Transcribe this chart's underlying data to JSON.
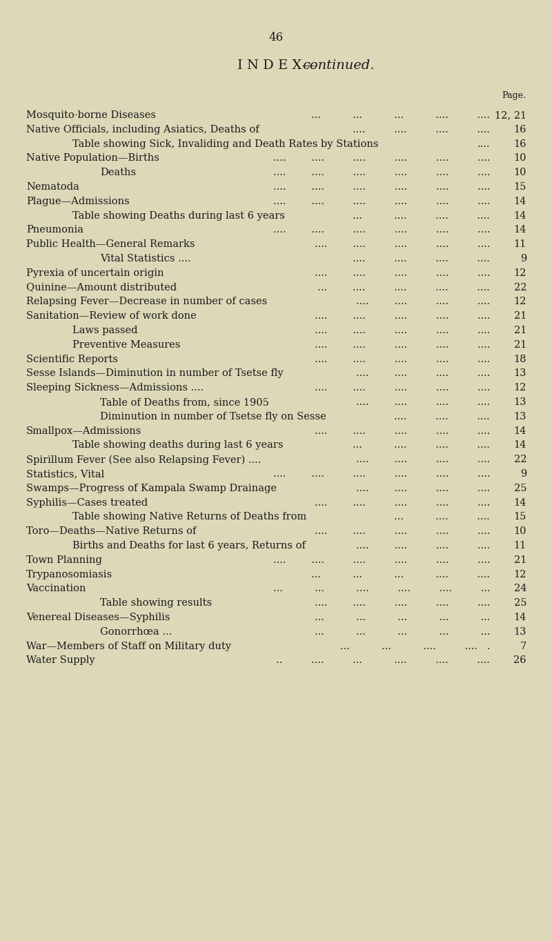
{
  "page_number": "46",
  "title": "I N D E X—",
  "title2": "continued.",
  "page_label": "Page.",
  "background_color": "#ddd8b8",
  "text_color": "#1a1a1a",
  "entries": [
    {
      "indent": 0,
      "text": "Mosquito-borne Diseases",
      "dots": "...          ...          ...          ....         ....",
      "page": "12, 21"
    },
    {
      "indent": 0,
      "text": "Native Officials, including Asiatics, Deaths of",
      "dots": "....         ....         ....         ....",
      "page": "16"
    },
    {
      "indent": 1,
      "text": "Table showing Sick, Invaliding and Death Rates by Stations",
      "dots": "....",
      "page": "16"
    },
    {
      "indent": 0,
      "text": "Native Population—Births",
      "dots": "....        ....         ....         ....         ....         ....",
      "page": "10"
    },
    {
      "indent": 2,
      "text": "Deaths",
      "dots": "....        ....         ....         ....         ....         ....",
      "page": "10"
    },
    {
      "indent": 0,
      "text": "Nematoda",
      "dots": "....        ....         ....         ....         ....         ....",
      "page": "15"
    },
    {
      "indent": 0,
      "text": "Plague—Admissions",
      "dots": "....        ....         ....         ....         ....         ....",
      "page": "14"
    },
    {
      "indent": 1,
      "text": "Table showing Deaths during last 6 years",
      "dots": "...          ....         ....         ....",
      "page": "14"
    },
    {
      "indent": 0,
      "text": "Pneumonia",
      "dots": "....        ....         ....         ....         ....         ....",
      "page": "14"
    },
    {
      "indent": 0,
      "text": "Public Health—General Remarks",
      "dots": "....        ....         ....         ....         ....",
      "page": "11"
    },
    {
      "indent": 2,
      "text": "Vital Statistics ....",
      "dots": "....         ....         ....         ....",
      "page": "9"
    },
    {
      "indent": 0,
      "text": "Pyrexia of uncertain origin",
      "dots": "....        ....         ....         ....         ....",
      "page": "12"
    },
    {
      "indent": 0,
      "text": "Quinine—Amount distributed",
      "dots": "...        ....         ....         ....         ....",
      "page": "22"
    },
    {
      "indent": 0,
      "text": "Relapsing Fever—Decrease in number of cases",
      "dots": "....        ....         ....         ....",
      "page": "12"
    },
    {
      "indent": 0,
      "text": "Sanitation—Review of work done",
      "dots": "....        ....         ....         ....         ....",
      "page": "21"
    },
    {
      "indent": 1,
      "text": "Laws passed",
      "dots": "....        ....         ....         ....         ....",
      "page": "21"
    },
    {
      "indent": 1,
      "text": "Preventive Measures",
      "dots": "....        ....         ....         ....         ....",
      "page": "21"
    },
    {
      "indent": 0,
      "text": "Scientific Reports",
      "dots": "....        ....         ....         ....         ....",
      "page": "18"
    },
    {
      "indent": 0,
      "text": "Sesse Islands—Diminution in number of Tsetse fly",
      "dots": "....        ....         ....         ....",
      "page": "13"
    },
    {
      "indent": 0,
      "text": "Sleeping Sickness—Admissions ....",
      "dots": "....        ....         ....         ....         ....",
      "page": "12"
    },
    {
      "indent": 2,
      "text": "Table of Deaths from, since 1905",
      "dots": "....        ....         ....         ....",
      "page": "13"
    },
    {
      "indent": 2,
      "text": "Diminution in number of Tsetse fly on Sesse",
      "dots": "....         ....         ....",
      "page": "13"
    },
    {
      "indent": 0,
      "text": "Smallpox—Admissions",
      "dots": "....        ....         ....         ....         ....",
      "page": "14"
    },
    {
      "indent": 1,
      "text": "Table showing deaths during last 6 years",
      "dots": "...          ....         ....         ....",
      "page": "14"
    },
    {
      "indent": 0,
      "text": "Spirillum Fever (See also Relapsing Fever) ....",
      "dots": "....        ....         ....         ....",
      "page": "22"
    },
    {
      "indent": 0,
      "text": "Statistics, Vital",
      "dots": "....        ....         ....         ....         ....         ....",
      "page": "9"
    },
    {
      "indent": 0,
      "text": "Swamps—Progress of Kampala Swamp Drainage",
      "dots": "....        ....         ....         ....",
      "page": "25"
    },
    {
      "indent": 0,
      "text": "Syphilis—Cases treated",
      "dots": "....        ....         ....         ....         ....",
      "page": "14"
    },
    {
      "indent": 1,
      "text": "Table showing Native Returns of Deaths from",
      "dots": "...          ....         ....",
      "page": "15"
    },
    {
      "indent": 0,
      "text": "Toro—Deaths—Native Returns of",
      "dots": "....        ....         ....         ....         ....",
      "page": "10"
    },
    {
      "indent": 1,
      "text": "Births and Deaths for last 6 years, Returns of",
      "dots": "....        ....         ....         ....",
      "page": "11"
    },
    {
      "indent": 0,
      "text": "Town Planning",
      "dots": "....        ....         ....         ....         ....         ....",
      "page": "21"
    },
    {
      "indent": 0,
      "text": "Trypanosomiasis",
      "dots": "...          ...          ...          ....         ....",
      "page": "12"
    },
    {
      "indent": 0,
      "text": "Vaccination",
      "dots": "...          ...          ....         ....         ....         ...",
      "page": "24"
    },
    {
      "indent": 2,
      "text": "Table showing results",
      "dots": "....        ....         ....         ....         ....",
      "page": "25"
    },
    {
      "indent": 0,
      "text": "Venereal Diseases—Syphilis",
      "dots": "...          ...          ...          ...          ...",
      "page": "14"
    },
    {
      "indent": 2,
      "text": "Gonorrhœa ...",
      "dots": "...          ...          ...          ...          ...",
      "page": "13"
    },
    {
      "indent": 0,
      "text": "War—Members of Staff on Military duty",
      "dots": "...          ...          ....         ....   .",
      "page": "7"
    },
    {
      "indent": 0,
      "text": "Water Supply",
      "dots": "..         ....         ...          ....         ....         ....",
      "page": "26"
    }
  ],
  "figsize": [
    8.0,
    13.64
  ],
  "dpi": 100
}
